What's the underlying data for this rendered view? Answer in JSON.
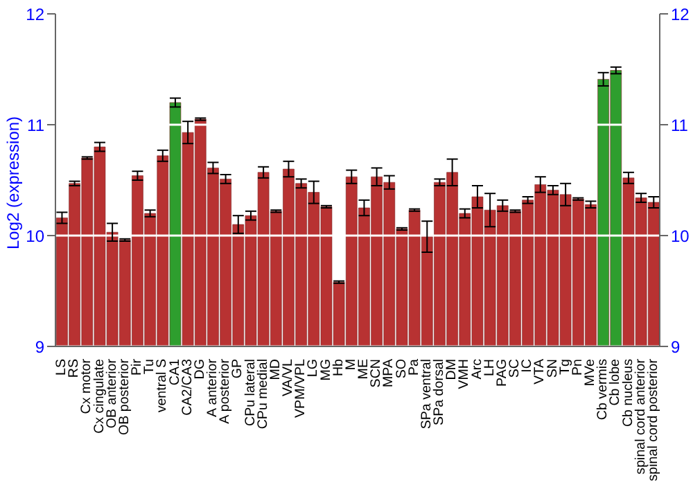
{
  "chart_data": {
    "type": "bar",
    "ylabel": "Log2 (expression)",
    "categories": [
      "LS",
      "RS",
      "Cx motor",
      "Cx cingulate",
      "OB anterior",
      "OB posterior",
      "Pir",
      "Tu",
      "ventral S",
      "CA1",
      "CA2/CA3",
      "DG",
      "A anterior",
      "A posterior",
      "GP",
      "CPu lateral",
      "CPu medial",
      "MD",
      "VA/VL",
      "VPM/VPL",
      "LG",
      "MG",
      "Hb",
      "M",
      "ME",
      "SCN",
      "MPA",
      "SO",
      "Pa",
      "SPa ventral",
      "SPa dorsal",
      "DM",
      "VMH",
      "Arc",
      "LH",
      "PAG",
      "SC",
      "IC",
      "VTA",
      "SN",
      "Tg",
      "Pn",
      "MVe",
      "Cb vermis",
      "Cb lobe",
      "Cb nucleus",
      "spinal cord anterior",
      "spinal cord posterior"
    ],
    "values": [
      10.16,
      10.47,
      10.7,
      10.8,
      10.03,
      9.96,
      10.54,
      10.2,
      10.72,
      11.2,
      10.93,
      11.05,
      10.61,
      10.51,
      10.1,
      10.18,
      10.57,
      10.22,
      10.6,
      10.47,
      10.39,
      10.26,
      9.58,
      10.53,
      10.25,
      10.53,
      10.48,
      10.06,
      10.23,
      9.99,
      10.48,
      10.57,
      10.2,
      10.35,
      10.23,
      10.27,
      10.22,
      10.32,
      10.46,
      10.41,
      10.37,
      10.33,
      10.28,
      11.41,
      11.49,
      10.52,
      10.34,
      10.3
    ],
    "errors": [
      0.05,
      0.02,
      0.01,
      0.04,
      0.08,
      0.01,
      0.04,
      0.03,
      0.05,
      0.04,
      0.1,
      0.01,
      0.05,
      0.04,
      0.08,
      0.04,
      0.05,
      0.01,
      0.07,
      0.04,
      0.1,
      0.01,
      0.01,
      0.06,
      0.07,
      0.08,
      0.06,
      0.01,
      0.01,
      0.14,
      0.03,
      0.12,
      0.04,
      0.1,
      0.15,
      0.05,
      0.01,
      0.03,
      0.07,
      0.04,
      0.1,
      0.01,
      0.03,
      0.06,
      0.03,
      0.05,
      0.04,
      0.05
    ],
    "colors": [
      "#b83232",
      "#b83232",
      "#b83232",
      "#b83232",
      "#b83232",
      "#b83232",
      "#b83232",
      "#b83232",
      "#b83232",
      "#2e9e2e",
      "#b83232",
      "#b83232",
      "#b83232",
      "#b83232",
      "#b83232",
      "#b83232",
      "#b83232",
      "#b83232",
      "#b83232",
      "#b83232",
      "#b83232",
      "#b83232",
      "#b83232",
      "#b83232",
      "#b83232",
      "#b83232",
      "#b83232",
      "#b83232",
      "#b83232",
      "#b83232",
      "#b83232",
      "#b83232",
      "#b83232",
      "#b83232",
      "#b83232",
      "#b83232",
      "#b83232",
      "#b83232",
      "#b83232",
      "#b83232",
      "#b83232",
      "#b83232",
      "#b83232",
      "#2e9e2e",
      "#2e9e2e",
      "#b83232",
      "#b83232",
      "#b83232"
    ],
    "ylim": [
      9,
      12
    ],
    "yticks": [
      9,
      10,
      11,
      12
    ],
    "y2lim": [
      9,
      12
    ],
    "y2ticks": [
      9,
      10,
      11,
      12
    ],
    "grid": "y"
  }
}
